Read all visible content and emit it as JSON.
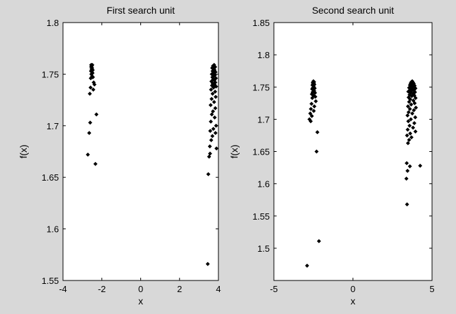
{
  "colors": {
    "figure_background": "#d8d8d8",
    "axes_background": "#ffffff",
    "marker": "#000000"
  },
  "chart_data": [
    {
      "type": "scatter",
      "title": "First search unit",
      "xlabel": "x",
      "ylabel": "f(x)",
      "xlim": [
        -4,
        4
      ],
      "ylim": [
        1.55,
        1.8
      ],
      "xticks": [
        -4,
        -2,
        0,
        2,
        4
      ],
      "yticks": [
        1.55,
        1.6,
        1.65,
        1.7,
        1.75,
        1.8
      ],
      "grid": false,
      "marker": "diamond",
      "points": [
        [
          -2.55,
          1.759
        ],
        [
          -2.52,
          1.758
        ],
        [
          -2.49,
          1.759
        ],
        [
          -2.55,
          1.757
        ],
        [
          -2.5,
          1.756
        ],
        [
          -2.53,
          1.755
        ],
        [
          -2.47,
          1.754
        ],
        [
          -2.56,
          1.753
        ],
        [
          -2.51,
          1.752
        ],
        [
          -2.48,
          1.751
        ],
        [
          -2.54,
          1.75
        ],
        [
          -2.5,
          1.748
        ],
        [
          -2.46,
          1.747
        ],
        [
          -2.57,
          1.746
        ],
        [
          -2.42,
          1.742
        ],
        [
          -2.38,
          1.74
        ],
        [
          -2.58,
          1.737
        ],
        [
          -2.44,
          1.735
        ],
        [
          -2.62,
          1.731
        ],
        [
          -2.28,
          1.711
        ],
        [
          -2.6,
          1.703
        ],
        [
          -2.65,
          1.693
        ],
        [
          -2.72,
          1.672
        ],
        [
          -2.33,
          1.663
        ],
        [
          3.78,
          1.759
        ],
        [
          3.72,
          1.758
        ],
        [
          3.83,
          1.757
        ],
        [
          3.68,
          1.756
        ],
        [
          3.77,
          1.755
        ],
        [
          3.8,
          1.754
        ],
        [
          3.7,
          1.753
        ],
        [
          3.85,
          1.752
        ],
        [
          3.74,
          1.751
        ],
        [
          3.66,
          1.75
        ],
        [
          3.82,
          1.749
        ],
        [
          3.76,
          1.748
        ],
        [
          3.69,
          1.747
        ],
        [
          3.87,
          1.746
        ],
        [
          3.73,
          1.745
        ],
        [
          3.79,
          1.744
        ],
        [
          3.64,
          1.743
        ],
        [
          3.84,
          1.742
        ],
        [
          3.71,
          1.741
        ],
        [
          3.8,
          1.74
        ],
        [
          3.67,
          1.739
        ],
        [
          3.88,
          1.738
        ],
        [
          3.75,
          1.737
        ],
        [
          3.62,
          1.735
        ],
        [
          3.83,
          1.733
        ],
        [
          3.7,
          1.731
        ],
        [
          3.86,
          1.728
        ],
        [
          3.65,
          1.726
        ],
        [
          3.78,
          1.723
        ],
        [
          3.6,
          1.72
        ],
        [
          3.84,
          1.717
        ],
        [
          3.72,
          1.714
        ],
        [
          3.66,
          1.711
        ],
        [
          3.81,
          1.708
        ],
        [
          3.61,
          1.704
        ],
        [
          3.88,
          1.7
        ],
        [
          3.74,
          1.697
        ],
        [
          3.58,
          1.695
        ],
        [
          3.85,
          1.693
        ],
        [
          3.69,
          1.69
        ],
        [
          3.63,
          1.686
        ],
        [
          3.56,
          1.68
        ],
        [
          3.9,
          1.678
        ],
        [
          3.57,
          1.673
        ],
        [
          3.52,
          1.67
        ],
        [
          3.48,
          1.653
        ],
        [
          3.45,
          1.566
        ]
      ]
    },
    {
      "type": "scatter",
      "title": "Second  search unit",
      "xlabel": "x",
      "ylabel": "f(x)",
      "xlim": [
        -5,
        5
      ],
      "ylim": [
        1.45,
        1.85
      ],
      "xticks": [
        -5,
        0,
        5
      ],
      "yticks": [
        1.5,
        1.55,
        1.6,
        1.65,
        1.7,
        1.75,
        1.8,
        1.85
      ],
      "grid": false,
      "marker": "diamond",
      "points": [
        [
          -2.5,
          1.759
        ],
        [
          -2.46,
          1.758
        ],
        [
          -2.54,
          1.757
        ],
        [
          -2.48,
          1.756
        ],
        [
          -2.52,
          1.755
        ],
        [
          -2.44,
          1.754
        ],
        [
          -2.56,
          1.753
        ],
        [
          -2.5,
          1.752
        ],
        [
          -2.47,
          1.75
        ],
        [
          -2.53,
          1.749
        ],
        [
          -2.42,
          1.748
        ],
        [
          -2.58,
          1.747
        ],
        [
          -2.49,
          1.745
        ],
        [
          -2.45,
          1.744
        ],
        [
          -2.55,
          1.742
        ],
        [
          -2.4,
          1.741
        ],
        [
          -2.6,
          1.739
        ],
        [
          -2.5,
          1.737
        ],
        [
          -2.38,
          1.735
        ],
        [
          -2.57,
          1.733
        ],
        [
          -2.35,
          1.728
        ],
        [
          -2.62,
          1.724
        ],
        [
          -2.44,
          1.72
        ],
        [
          -2.66,
          1.716
        ],
        [
          -2.48,
          1.713
        ],
        [
          -2.7,
          1.709
        ],
        [
          -2.6,
          1.705
        ],
        [
          -2.75,
          1.7
        ],
        [
          -2.67,
          1.697
        ],
        [
          -2.25,
          1.68
        ],
        [
          -2.3,
          1.65
        ],
        [
          -2.15,
          1.511
        ],
        [
          -2.9,
          1.473
        ],
        [
          3.75,
          1.759
        ],
        [
          3.7,
          1.758
        ],
        [
          3.8,
          1.757
        ],
        [
          3.65,
          1.756
        ],
        [
          3.85,
          1.755
        ],
        [
          3.72,
          1.754
        ],
        [
          3.6,
          1.753
        ],
        [
          3.9,
          1.752
        ],
        [
          3.68,
          1.751
        ],
        [
          3.78,
          1.75
        ],
        [
          3.55,
          1.749
        ],
        [
          3.95,
          1.748
        ],
        [
          3.74,
          1.747
        ],
        [
          3.62,
          1.746
        ],
        [
          3.86,
          1.745
        ],
        [
          3.7,
          1.744
        ],
        [
          3.5,
          1.743
        ],
        [
          3.92,
          1.742
        ],
        [
          3.65,
          1.741
        ],
        [
          3.8,
          1.74
        ],
        [
          3.58,
          1.738
        ],
        [
          3.88,
          1.737
        ],
        [
          3.72,
          1.736
        ],
        [
          3.52,
          1.734
        ],
        [
          3.96,
          1.733
        ],
        [
          3.62,
          1.731
        ],
        [
          3.82,
          1.729
        ],
        [
          3.55,
          1.727
        ],
        [
          3.9,
          1.725
        ],
        [
          3.68,
          1.723
        ],
        [
          3.48,
          1.72
        ],
        [
          3.98,
          1.718
        ],
        [
          3.6,
          1.716
        ],
        [
          3.85,
          1.714
        ],
        [
          3.52,
          1.711
        ],
        [
          3.75,
          1.709
        ],
        [
          3.45,
          1.706
        ],
        [
          3.94,
          1.703
        ],
        [
          3.66,
          1.7
        ],
        [
          3.5,
          1.697
        ],
        [
          3.88,
          1.694
        ],
        [
          3.58,
          1.69
        ],
        [
          3.8,
          1.687
        ],
        [
          3.46,
          1.684
        ],
        [
          3.95,
          1.681
        ],
        [
          3.62,
          1.678
        ],
        [
          3.42,
          1.675
        ],
        [
          3.7,
          1.672
        ],
        [
          3.55,
          1.668
        ],
        [
          3.48,
          1.663
        ],
        [
          3.4,
          1.632
        ],
        [
          3.6,
          1.627
        ],
        [
          4.25,
          1.628
        ],
        [
          3.45,
          1.62
        ],
        [
          3.38,
          1.608
        ],
        [
          3.42,
          1.568
        ]
      ]
    }
  ]
}
